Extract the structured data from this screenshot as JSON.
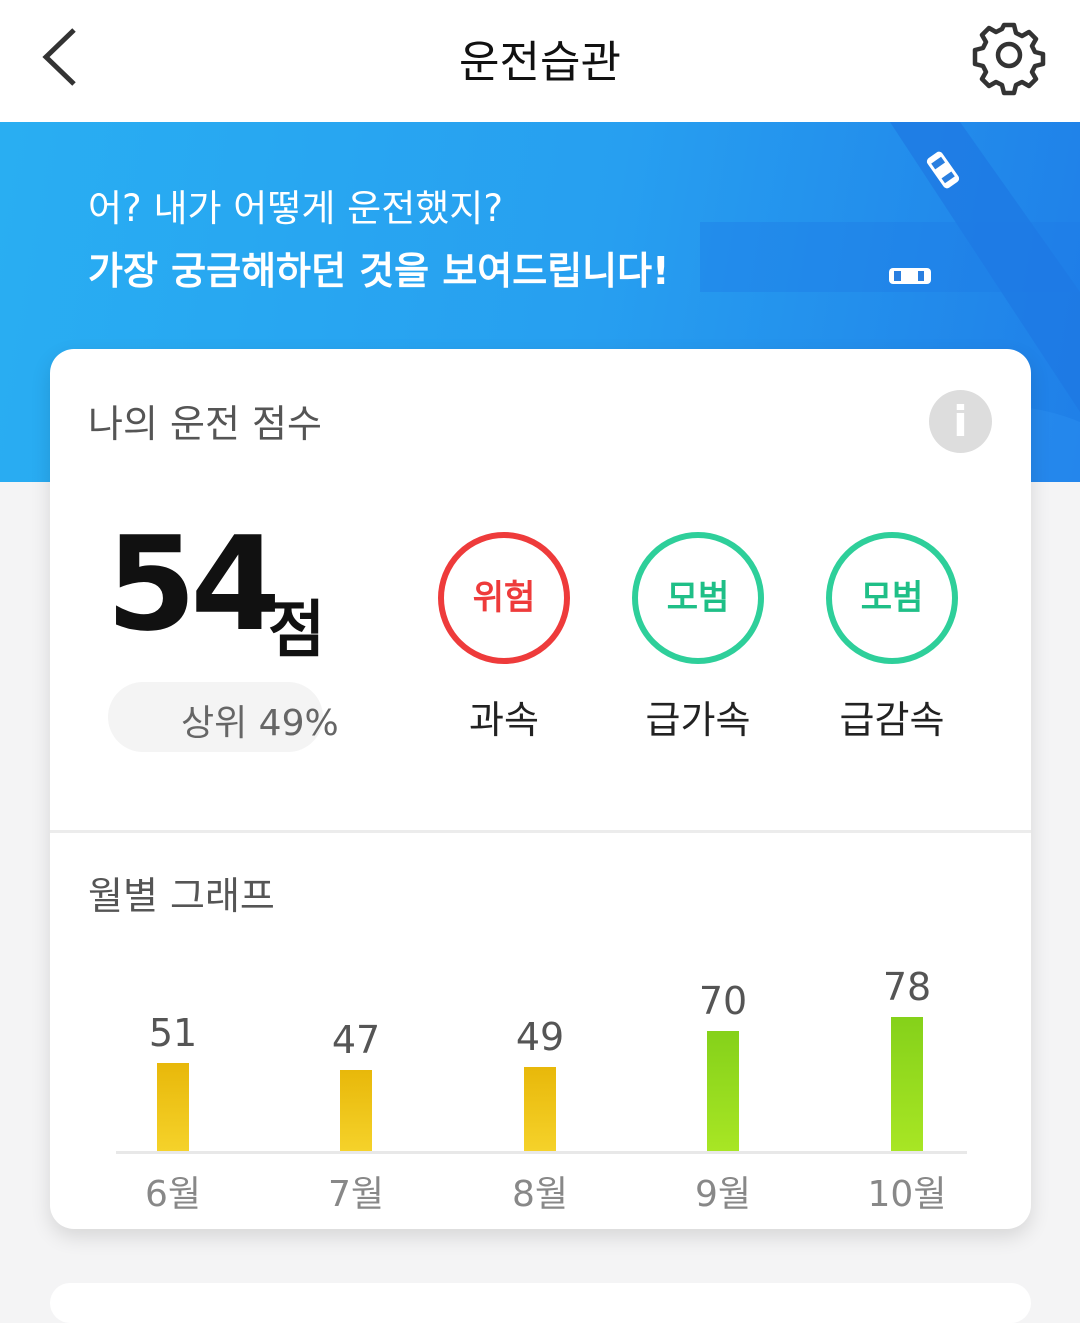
{
  "header": {
    "title": "운전습관",
    "back_icon": "chevron-left-icon",
    "settings_icon": "gear-icon"
  },
  "banner": {
    "line1": "어? 내가 어떻게 운전했지?",
    "line2": "가장 궁금해하던 것을 보여드립니다!",
    "colors": {
      "start": "#29aef2",
      "end": "#1f7fe8"
    }
  },
  "score_card": {
    "title": "나의 운전 점수",
    "info_label": "i",
    "score": "54",
    "unit": "점",
    "rank": "상위 49%",
    "badges": [
      {
        "status": "위험",
        "label": "과속",
        "color": "#ee3b3b"
      },
      {
        "status": "모범",
        "label": "급가속",
        "color": "#2ecf9a"
      },
      {
        "status": "모범",
        "label": "급감속",
        "color": "#2ecf9a"
      }
    ]
  },
  "monthly": {
    "title": "월별 그래프"
  },
  "chart_data": {
    "type": "bar",
    "categories": [
      "6월",
      "7월",
      "8월",
      "9월",
      "10월"
    ],
    "values": [
      51,
      47,
      49,
      70,
      78
    ],
    "ylim": [
      0,
      100
    ],
    "colors": {
      "low": "#edbd0f",
      "high": "#8fd61d"
    }
  }
}
